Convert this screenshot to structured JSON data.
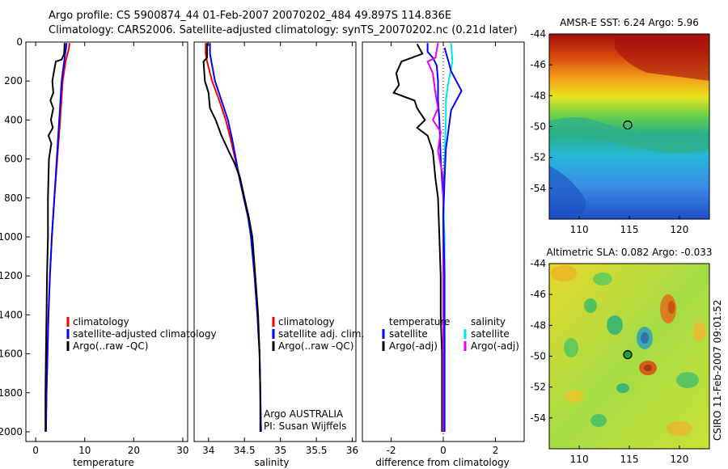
{
  "title": {
    "line1": "Argo profile: CS 5900874_44 01-Feb-2007 20070202_484 49.897S 114.836E",
    "line2": "Climatology: CARS2006. Satellite-adjusted climatology: synTS_20070202.nc (0.21d later)"
  },
  "side_label": "CSIRO 11-Feb-2007 09:01:52",
  "colors": {
    "climatology": "#ff0000",
    "satellite": "#0000ff",
    "argo": "#000000",
    "cyan": "#00e5ee",
    "magenta": "#ee00ee"
  },
  "chart_data": [
    {
      "type": "line",
      "xlabel": "temperature",
      "ylabel": "",
      "xlim": [
        -2,
        31
      ],
      "ylim": [
        2050,
        0
      ],
      "xticks": [
        0,
        10,
        20,
        30
      ],
      "yticks": [
        0,
        200,
        400,
        600,
        800,
        1000,
        1200,
        1400,
        1600,
        1800,
        2000
      ],
      "legend": [
        "climatology",
        "satellite-adjusted climatology",
        "Argo(..raw -QC)"
      ],
      "series": [
        {
          "name": "climatology",
          "color": "#ff0000",
          "points": [
            [
              6.9,
              5
            ],
            [
              6.8,
              30
            ],
            [
              6.5,
              60
            ],
            [
              6.1,
              100
            ],
            [
              5.5,
              200
            ],
            [
              5.0,
              400
            ],
            [
              4.4,
              600
            ],
            [
              3.8,
              800
            ],
            [
              3.3,
              1000
            ],
            [
              2.9,
              1200
            ],
            [
              2.6,
              1400
            ],
            [
              2.4,
              1600
            ],
            [
              2.2,
              1800
            ],
            [
              2.1,
              2000
            ]
          ]
        },
        {
          "name": "satellite-adjusted climatology",
          "color": "#0000ff",
          "points": [
            [
              6.3,
              5
            ],
            [
              6.2,
              30
            ],
            [
              6.0,
              60
            ],
            [
              5.8,
              100
            ],
            [
              5.3,
              200
            ],
            [
              4.8,
              400
            ],
            [
              4.3,
              600
            ],
            [
              3.8,
              800
            ],
            [
              3.3,
              1000
            ],
            [
              2.9,
              1200
            ],
            [
              2.6,
              1400
            ],
            [
              2.4,
              1600
            ],
            [
              2.2,
              1800
            ],
            [
              2.1,
              2000
            ]
          ]
        },
        {
          "name": "Argo(..raw -QC)",
          "color": "#000000",
          "points": [
            [
              5.9,
              5
            ],
            [
              5.8,
              60
            ],
            [
              5.3,
              90
            ],
            [
              4.1,
              100
            ],
            [
              3.8,
              140
            ],
            [
              3.4,
              200
            ],
            [
              3.6,
              260
            ],
            [
              3.0,
              300
            ],
            [
              3.6,
              340
            ],
            [
              3.1,
              400
            ],
            [
              3.5,
              440
            ],
            [
              2.6,
              480
            ],
            [
              3.2,
              520
            ],
            [
              2.7,
              600
            ],
            [
              2.6,
              700
            ],
            [
              2.5,
              800
            ],
            [
              2.5,
              1000
            ],
            [
              2.3,
              1200
            ],
            [
              2.2,
              1400
            ],
            [
              2.1,
              1600
            ],
            [
              2.0,
              1800
            ],
            [
              2.0,
              2000
            ]
          ]
        }
      ]
    },
    {
      "type": "line",
      "xlabel": "salinity",
      "xlim": [
        33.8,
        36.05
      ],
      "ylim": [
        2050,
        0
      ],
      "xticks": [
        34,
        34.5,
        35,
        35.5,
        36
      ],
      "legend": [
        "climatology",
        "satellite adj. clim.",
        "Argo(..raw -QC)"
      ],
      "annotation": [
        "Argo AUSTRALIA",
        "PI: Susan Wijffels"
      ],
      "series": [
        {
          "name": "climatology",
          "color": "#ff0000",
          "points": [
            [
              33.96,
              5
            ],
            [
              33.96,
              60
            ],
            [
              33.98,
              100
            ],
            [
              34.05,
              200
            ],
            [
              34.15,
              300
            ],
            [
              34.24,
              400
            ],
            [
              34.31,
              500
            ],
            [
              34.37,
              600
            ],
            [
              34.44,
              700
            ],
            [
              34.5,
              800
            ],
            [
              34.56,
              900
            ],
            [
              34.6,
              1000
            ],
            [
              34.64,
              1200
            ],
            [
              34.68,
              1400
            ],
            [
              34.71,
              1600
            ],
            [
              34.72,
              1800
            ],
            [
              34.73,
              2000
            ]
          ]
        },
        {
          "name": "satellite adj. clim.",
          "color": "#0000ff",
          "points": [
            [
              34.02,
              5
            ],
            [
              34.02,
              60
            ],
            [
              34.04,
              100
            ],
            [
              34.09,
              200
            ],
            [
              34.18,
              300
            ],
            [
              34.27,
              400
            ],
            [
              34.33,
              500
            ],
            [
              34.38,
              600
            ],
            [
              34.43,
              700
            ],
            [
              34.49,
              800
            ],
            [
              34.55,
              900
            ],
            [
              34.59,
              1000
            ],
            [
              34.64,
              1200
            ],
            [
              34.68,
              1400
            ],
            [
              34.71,
              1600
            ],
            [
              34.72,
              1800
            ],
            [
              34.73,
              2000
            ]
          ]
        },
        {
          "name": "Argo(..raw -QC)",
          "color": "#000000",
          "points": [
            [
              33.98,
              5
            ],
            [
              33.98,
              80
            ],
            [
              33.93,
              100
            ],
            [
              33.95,
              200
            ],
            [
              34.0,
              260
            ],
            [
              34.02,
              340
            ],
            [
              34.1,
              400
            ],
            [
              34.18,
              480
            ],
            [
              34.28,
              560
            ],
            [
              34.36,
              620
            ],
            [
              34.44,
              700
            ],
            [
              34.5,
              800
            ],
            [
              34.56,
              900
            ],
            [
              34.61,
              1000
            ],
            [
              34.65,
              1200
            ],
            [
              34.69,
              1400
            ],
            [
              34.71,
              1600
            ],
            [
              34.72,
              1800
            ],
            [
              34.72,
              2000
            ]
          ]
        }
      ]
    },
    {
      "type": "line",
      "xlabel": "difference from climatology",
      "xlim": [
        -3.1,
        3.1
      ],
      "ylim": [
        2050,
        0
      ],
      "xticks": [
        -2,
        0,
        2
      ],
      "legend_temperature": {
        "heading": "temperature",
        "items": [
          "satellite",
          "Argo(-adj)"
        ]
      },
      "legend_salinity": {
        "heading": "salinity",
        "items": [
          "satellite",
          "Argo(-adj)"
        ]
      },
      "series": [
        {
          "name": "temperature satellite",
          "color": "#0000ff",
          "points": [
            [
              -0.6,
              5
            ],
            [
              -0.6,
              50
            ],
            [
              -0.4,
              80
            ],
            [
              -0.25,
              120
            ],
            [
              -0.2,
              200
            ],
            [
              -0.2,
              300
            ],
            [
              -0.15,
              400
            ],
            [
              -0.1,
              600
            ],
            [
              0,
              800
            ],
            [
              0,
              2000
            ]
          ]
        },
        {
          "name": "temperature Argo(-adj)",
          "color": "#000000",
          "points": [
            [
              -1.0,
              10
            ],
            [
              -0.8,
              60
            ],
            [
              -1.6,
              100
            ],
            [
              -1.8,
              160
            ],
            [
              -1.7,
              220
            ],
            [
              -1.9,
              260
            ],
            [
              -1.1,
              300
            ],
            [
              -1.0,
              340
            ],
            [
              -0.7,
              400
            ],
            [
              -1.0,
              440
            ],
            [
              -0.6,
              480
            ],
            [
              -0.4,
              560
            ],
            [
              -0.3,
              700
            ],
            [
              -0.2,
              800
            ],
            [
              -0.15,
              1000
            ],
            [
              -0.1,
              1200
            ],
            [
              -0.1,
              1400
            ],
            [
              -0.05,
              1600
            ],
            [
              -0.05,
              1800
            ],
            [
              -0.05,
              2000
            ]
          ]
        },
        {
          "name": "salinity satellite",
          "color": "#00e5ee",
          "points": [
            [
              0.3,
              5
            ],
            [
              0.35,
              100
            ],
            [
              0.2,
              200
            ],
            [
              0.1,
              300
            ],
            [
              0.1,
              400
            ],
            [
              0.05,
              600
            ],
            [
              0,
              800
            ],
            [
              0.05,
              1000
            ],
            [
              0.05,
              1400
            ],
            [
              0.05,
              2000
            ]
          ]
        },
        {
          "name": "salinity Argo(-adj)",
          "color": "#ee00ee",
          "points": [
            [
              -0.2,
              5
            ],
            [
              -0.3,
              80
            ],
            [
              -0.6,
              100
            ],
            [
              -0.4,
              160
            ],
            [
              -0.3,
              260
            ],
            [
              -0.2,
              340
            ],
            [
              -0.4,
              400
            ],
            [
              -0.1,
              460
            ],
            [
              -0.2,
              560
            ],
            [
              0,
              700
            ],
            [
              0,
              800
            ],
            [
              0,
              1000
            ],
            [
              0,
              2000
            ]
          ]
        },
        {
          "name": "blue right",
          "color": "#0000ff",
          "points": [
            [
              0.05,
              30
            ],
            [
              0.2,
              100
            ],
            [
              0.3,
              150
            ],
            [
              0.5,
              200
            ],
            [
              0.7,
              250
            ],
            [
              0.3,
              350
            ],
            [
              0.2,
              450
            ],
            [
              0.1,
              550
            ],
            [
              0.05,
              700
            ],
            [
              0,
              900
            ],
            [
              0.05,
              1200
            ],
            [
              0.05,
              2000
            ]
          ]
        }
      ]
    }
  ],
  "maps": [
    {
      "title": "AMSR-E SST: 6.24 Argo: 5.96",
      "xticks": [
        "110",
        "115",
        "120"
      ],
      "yticks": [
        "-44",
        "-46",
        "-48",
        "-50",
        "-52",
        "-54"
      ],
      "marker": {
        "lon": 114.84,
        "lat": -49.9
      }
    },
    {
      "title": "Altimetric SLA: 0.082 Argo: -0.033",
      "xticks": [
        "110",
        "115",
        "120"
      ],
      "yticks": [
        "-44",
        "-46",
        "-48",
        "-50",
        "-52",
        "-54"
      ],
      "marker": {
        "lon": 114.84,
        "lat": -49.9
      }
    }
  ]
}
